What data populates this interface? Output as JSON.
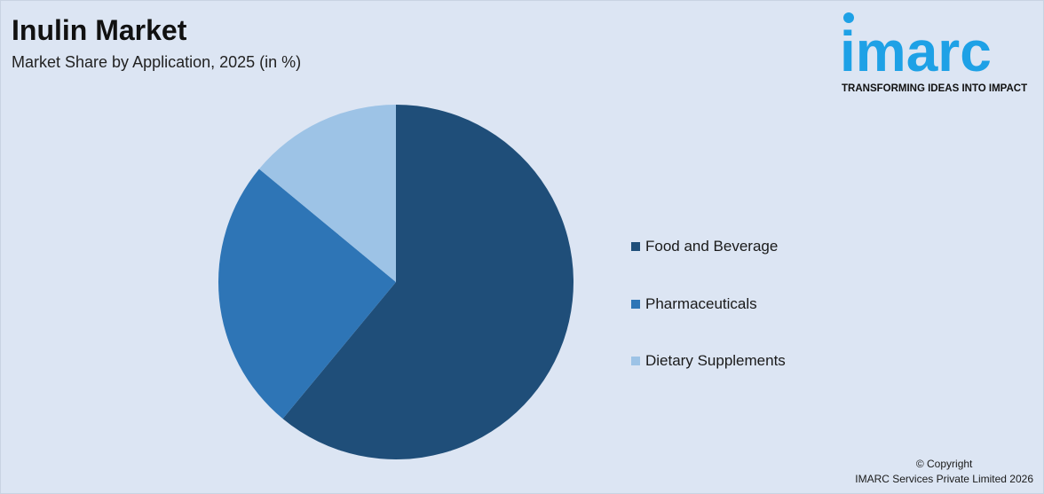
{
  "header": {
    "title": "Inulin Market",
    "subtitle": "Market Share by Application, 2025 (in %)"
  },
  "logo": {
    "wordmark": "imarc",
    "tagline": "TRANSFORMING IDEAS INTO IMPACT",
    "color": "#1ea1e6"
  },
  "chart_data": {
    "type": "pie",
    "title": "Inulin Market",
    "subtitle": "Market Share by Application, 2025 (in %)",
    "legend_position": "right",
    "slices": [
      {
        "label": "Food and Beverage",
        "value": 61,
        "color": "#1f4e79"
      },
      {
        "label": "Pharmaceuticals",
        "value": 25,
        "color": "#2e75b6"
      },
      {
        "label": "Dietary Supplements",
        "value": 14,
        "color": "#9dc3e6"
      }
    ]
  },
  "footer": {
    "copyright_line1": "© Copyright",
    "copyright_line2": "IMARC Services Private Limited 2026"
  }
}
